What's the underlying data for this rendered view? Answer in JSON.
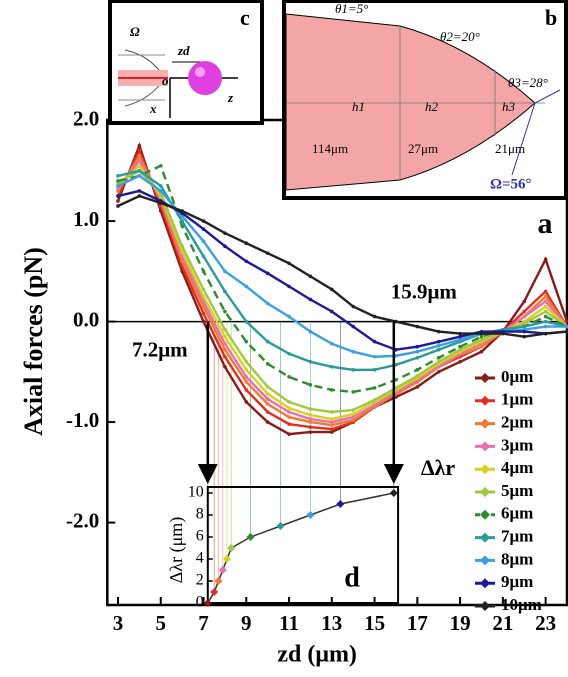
{
  "chart_data": [
    {
      "type": "line",
      "panel_label": "a",
      "x_label": "zd (μm)",
      "y_label": "Axial forces (pN)",
      "x": [
        3,
        4,
        5,
        6,
        7,
        8,
        9,
        10,
        11,
        12,
        13,
        14,
        15,
        16,
        17,
        18,
        19,
        20,
        21,
        22,
        23,
        24
      ],
      "xlim": [
        2.5,
        24
      ],
      "ylim": [
        -2.82,
        3.15
      ],
      "xticks": [
        3,
        5,
        7,
        9,
        11,
        13,
        15,
        17,
        19,
        21,
        23
      ],
      "yticks": [
        {
          "value": 2,
          "label": "2.0"
        },
        {
          "value": 1,
          "label": "1.0"
        },
        {
          "value": 0,
          "label": "0.0"
        },
        {
          "value": -1,
          "label": "-1.0"
        },
        {
          "value": -2,
          "label": "-2.0"
        }
      ],
      "zero_line": true,
      "legend_title": "Δλr",
      "legend_position": "lower right",
      "annotations": [
        {
          "text": "7.2μm",
          "x": 7.2
        },
        {
          "text": "15.9μm",
          "x": 15.9
        }
      ],
      "series": [
        {
          "name": "0μm",
          "color": "#8b1a1a",
          "values": [
            1.2,
            1.75,
            1.1,
            0.5,
            0.0,
            -0.45,
            -0.8,
            -1.0,
            -1.12,
            -1.1,
            -1.1,
            -1.0,
            -0.85,
            -0.75,
            -0.65,
            -0.5,
            -0.4,
            -0.3,
            -0.1,
            0.2,
            0.62,
            0.0
          ]
        },
        {
          "name": "1μm",
          "color": "#e03020",
          "values": [
            1.25,
            1.7,
            1.15,
            0.55,
            0.08,
            -0.35,
            -0.68,
            -0.9,
            -1.02,
            -1.05,
            -1.07,
            -1.0,
            -0.85,
            -0.72,
            -0.6,
            -0.45,
            -0.35,
            -0.25,
            -0.1,
            0.1,
            0.3,
            -0.05
          ]
        },
        {
          "name": "2μm",
          "color": "#f07a30",
          "values": [
            1.3,
            1.65,
            1.2,
            0.6,
            0.15,
            -0.28,
            -0.6,
            -0.82,
            -0.95,
            -1.0,
            -1.03,
            -0.98,
            -0.85,
            -0.72,
            -0.6,
            -0.45,
            -0.33,
            -0.25,
            -0.1,
            0.05,
            0.25,
            -0.05
          ]
        },
        {
          "name": "3μm",
          "color": "#e870b0",
          "values": [
            1.32,
            1.6,
            1.22,
            0.65,
            0.2,
            -0.22,
            -0.55,
            -0.77,
            -0.9,
            -0.97,
            -1.0,
            -0.95,
            -0.83,
            -0.7,
            -0.58,
            -0.44,
            -0.32,
            -0.22,
            -0.1,
            0.05,
            0.2,
            -0.05
          ]
        },
        {
          "name": "4μm",
          "color": "#d8d020",
          "values": [
            1.35,
            1.55,
            1.25,
            0.7,
            0.25,
            -0.15,
            -0.48,
            -0.72,
            -0.86,
            -0.93,
            -0.97,
            -0.92,
            -0.8,
            -0.68,
            -0.56,
            -0.42,
            -0.3,
            -0.2,
            -0.1,
            0.0,
            0.15,
            -0.05
          ]
        },
        {
          "name": "5μm",
          "color": "#a0c840",
          "values": [
            1.38,
            1.5,
            1.28,
            0.75,
            0.32,
            -0.08,
            -0.4,
            -0.65,
            -0.8,
            -0.87,
            -0.9,
            -0.88,
            -0.78,
            -0.66,
            -0.54,
            -0.4,
            -0.28,
            -0.18,
            -0.1,
            -0.02,
            0.1,
            -0.05
          ]
        },
        {
          "name": "6μm",
          "color": "#2e8b2e",
          "dashed": true,
          "values": [
            1.4,
            1.45,
            1.55,
            0.95,
            0.5,
            0.1,
            -0.2,
            -0.42,
            -0.55,
            -0.63,
            -0.68,
            -0.7,
            -0.66,
            -0.58,
            -0.48,
            -0.36,
            -0.25,
            -0.15,
            -0.08,
            -0.05,
            0.05,
            -0.05
          ]
        },
        {
          "name": "7μm",
          "color": "#2a9a9a",
          "values": [
            1.45,
            1.5,
            1.35,
            1.0,
            0.65,
            0.3,
            0.0,
            -0.2,
            -0.32,
            -0.4,
            -0.45,
            -0.48,
            -0.48,
            -0.43,
            -0.36,
            -0.28,
            -0.2,
            -0.12,
            -0.08,
            -0.05,
            0.0,
            -0.05
          ]
        },
        {
          "name": "8μm",
          "color": "#3aa0e0",
          "values": [
            1.35,
            1.45,
            1.3,
            1.05,
            0.8,
            0.5,
            0.35,
            0.18,
            0.05,
            -0.1,
            -0.22,
            -0.3,
            -0.35,
            -0.34,
            -0.3,
            -0.24,
            -0.18,
            -0.12,
            -0.1,
            -0.08,
            -0.05,
            -0.05
          ]
        },
        {
          "name": "9μm",
          "color": "#1a1a9a",
          "values": [
            1.25,
            1.3,
            1.2,
            1.08,
            0.92,
            0.75,
            0.6,
            0.48,
            0.35,
            0.22,
            0.1,
            -0.05,
            -0.2,
            -0.28,
            -0.25,
            -0.2,
            -0.15,
            -0.1,
            -0.1,
            -0.1,
            -0.12,
            -0.1
          ]
        },
        {
          "name": "10μm",
          "color": "#222222",
          "values": [
            1.15,
            1.25,
            1.18,
            1.1,
            1.0,
            0.88,
            0.78,
            0.68,
            0.58,
            0.45,
            0.32,
            0.15,
            0.05,
            0.0,
            -0.05,
            -0.1,
            -0.12,
            -0.12,
            -0.12,
            -0.15,
            -0.12,
            -0.1
          ]
        }
      ]
    },
    {
      "type": "line",
      "panel_label": "d",
      "y_label": "Δλr (μm)",
      "color": "#333333",
      "x": [
        7.2,
        7.5,
        7.7,
        7.9,
        8.1,
        8.3,
        9.2,
        10.6,
        12,
        13.4,
        15.9
      ],
      "values": [
        0,
        1,
        2,
        3,
        4,
        5,
        6,
        7,
        8,
        9,
        10
      ],
      "point_colors": [
        "#8b1a1a",
        "#e03020",
        "#f07a30",
        "#e870b0",
        "#d8d020",
        "#a0c840",
        "#2e8b2e",
        "#2a9a9a",
        "#3aa0e0",
        "#1a1a9a",
        "#222222"
      ],
      "xlim": [
        7.2,
        16.1
      ],
      "ylim": [
        0,
        10
      ],
      "yticks": [
        0,
        2,
        4,
        6,
        8,
        10
      ]
    }
  ],
  "inset_b": {
    "panel_label": "b",
    "angles": [
      "θ1=5°",
      "θ2=20°",
      "θ3=28°"
    ],
    "heights": [
      "h1",
      "h2",
      "h3"
    ],
    "lengths": [
      "114μm",
      "27μm",
      "21μm"
    ],
    "cone_angle": "Ω=56°"
  },
  "inset_c": {
    "panel_label": "c",
    "omega": "Ω",
    "distance": "zd",
    "origin": "o",
    "z_axis": "z",
    "x_axis": "x"
  }
}
